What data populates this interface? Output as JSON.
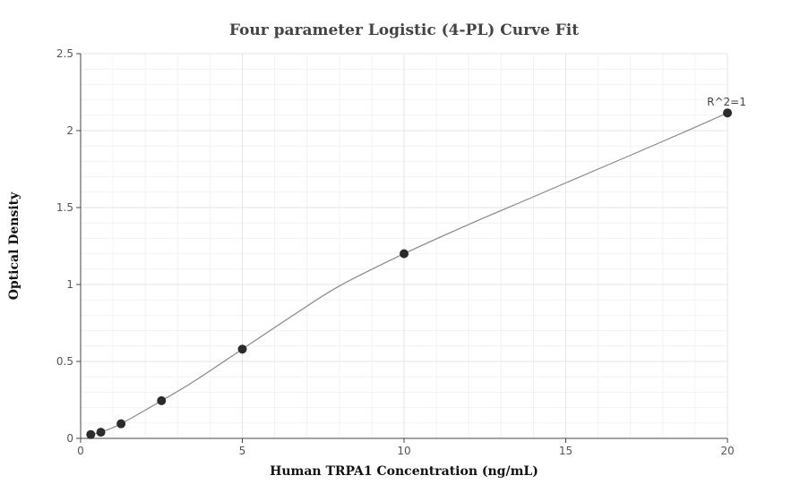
{
  "chart_data": {
    "type": "scatter",
    "title": "Four parameter Logistic (4-PL) Curve Fit",
    "xlabel": "Human TRPA1 Concentration (ng/mL)",
    "ylabel": "Optical Density",
    "xlim": [
      0,
      20
    ],
    "ylim": [
      0,
      2.5
    ],
    "x_ticks": [
      0,
      5,
      10,
      15,
      20
    ],
    "x_tick_labels": [
      "0",
      "5",
      "10",
      "15",
      "20"
    ],
    "y_ticks": [
      0,
      0.5,
      1,
      1.5,
      2,
      2.5
    ],
    "y_tick_labels": [
      "0",
      "0.5",
      "1",
      "1.5",
      "2",
      "2.5"
    ],
    "grid": true,
    "series": [
      {
        "x": [
          0.3125,
          0.625,
          1.25,
          2.5,
          5,
          10,
          20
        ],
        "y": [
          0.025,
          0.04,
          0.095,
          0.245,
          0.58,
          1.2,
          2.115
        ]
      }
    ],
    "fit_curve": {
      "x": [
        0.3125,
        0.625,
        1.25,
        2.5,
        3.5,
        5,
        6.5,
        8,
        10,
        12,
        14,
        16,
        18,
        20
      ],
      "y": [
        0.025,
        0.04,
        0.095,
        0.245,
        0.37,
        0.58,
        0.79,
        0.99,
        1.2,
        1.39,
        1.57,
        1.75,
        1.93,
        2.115
      ]
    },
    "annotations": [
      {
        "text": "R^2=1",
        "x": 20,
        "y": 2.115
      }
    ],
    "colors": {
      "points": "#2b2b2b",
      "curve": "#888888",
      "grid": "#e6e6e6"
    }
  }
}
